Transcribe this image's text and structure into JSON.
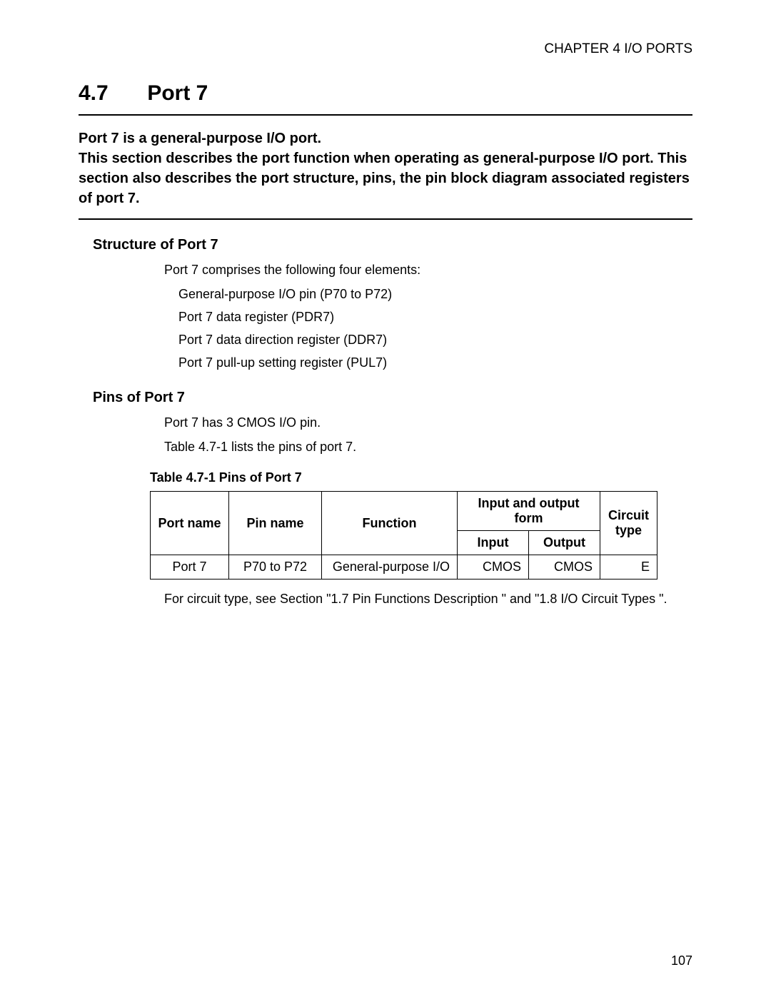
{
  "chapter_header": "CHAPTER 4  I/O PORTS",
  "section": {
    "number": "4.7",
    "title": "Port 7"
  },
  "intro": "Port 7 is a general-purpose I/O port.\nThis section describes the port function when operating as general-purpose I/O port. This section also describes the port structure, pins, the pin block diagram associated registers of port 7.",
  "structure": {
    "heading": "Structure of Port 7",
    "lead": "Port 7 comprises the following four elements:",
    "items": [
      "General-purpose I/O pin (P70 to P72)",
      "Port 7 data register (PDR7)",
      "Port 7 data direction register (DDR7)",
      "Port 7 pull-up setting register (PUL7)"
    ]
  },
  "pins": {
    "heading": "Pins of Port 7",
    "lead1": "Port 7 has 3 CMOS I/O pin.",
    "lead2": "Table 4.7-1  lists the pins of port 7.",
    "table_caption": "Table 4.7-1  Pins of Port 7",
    "columns": {
      "port_name": "Port name",
      "pin_name": "Pin name",
      "function": "Function",
      "io_form": "Input and output form",
      "input": "Input",
      "output": "Output",
      "circuit_type": "Circuit type"
    },
    "rows": [
      {
        "port_name": "Port 7",
        "pin_name": "P70 to P72",
        "function": "General-purpose I/O",
        "input": "CMOS",
        "output": "CMOS",
        "circuit_type": "E"
      }
    ],
    "footnote": "For circuit type, see Section \"1.7  Pin Functions Description \" and \"1.8  I/O Circuit Types \"."
  },
  "page_number": "107"
}
